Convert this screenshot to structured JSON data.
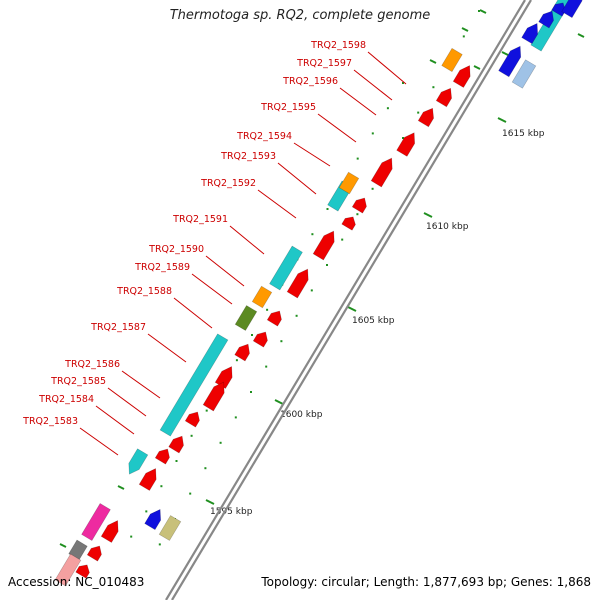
{
  "title": "Thermotoga sp. RQ2, complete genome",
  "footer": {
    "accession": "Accession: NC_010483",
    "summary": "Topology: circular; Length: 1,877,693 bp; Genes: 1,868"
  },
  "colors": {
    "backbone": "#888888",
    "label": "#cc0000",
    "tick": "#1f8f1f",
    "red": "#ee0000",
    "cyan": "#1fc7c7",
    "orange": "#ff9900",
    "olive": "#5c8a22",
    "blue": "#1010dd",
    "khaki": "#c8c07a",
    "magenta": "#ee2aa0",
    "pink": "#f4a0a0",
    "lightblue": "#9fc2e6"
  },
  "scale_labels": [
    "1595 kbp",
    "1600 kbp",
    "1605 kbp",
    "1610 kbp",
    "1615 kbp"
  ],
  "gene_labels": [
    "TRQ2_1583",
    "TRQ2_1584",
    "TRQ2_1585",
    "TRQ2_1586",
    "TRQ2_1587",
    "TRQ2_1588",
    "TRQ2_1589",
    "TRQ2_1590",
    "TRQ2_1591",
    "TRQ2_1592",
    "TRQ2_1593",
    "TRQ2_1594",
    "TRQ2_1595",
    "TRQ2_1596",
    "TRQ2_1597",
    "TRQ2_1598"
  ]
}
